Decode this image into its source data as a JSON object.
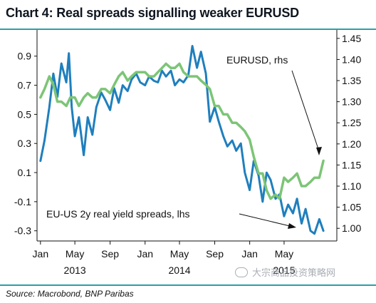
{
  "title": "Chart 4: Real spreads signalling weaker EURUSD",
  "source": "Source: Macrobond, BNP Paribas",
  "watermark": "大宗商品投资策略网",
  "colors": {
    "spread_series": "#1f7fbd",
    "eurusd_series": "#7cc576",
    "rule": "#2aa0a8",
    "text": "#111111"
  },
  "chart_data": {
    "type": "line",
    "xlim": [
      "2012-12-20",
      "2015-11-01"
    ],
    "ylim_left": [
      -0.37,
      1.08
    ],
    "ylim_right": [
      0.97,
      1.47
    ],
    "left_ticks": [
      0.9,
      0.7,
      0.5,
      0.3,
      0.1,
      -0.1,
      -0.3
    ],
    "left_tick_labels": [
      "0.9",
      "0.7",
      "0.5",
      "0.3",
      "0.1",
      "-0.1",
      "-0.3"
    ],
    "right_ticks": [
      1.45,
      1.4,
      1.35,
      1.3,
      1.25,
      1.2,
      1.15,
      1.1,
      1.05,
      1.0
    ],
    "right_tick_labels": [
      "1.45",
      "1.40",
      "1.35",
      "1.30",
      "1.25",
      "1.20",
      "1.15",
      "1.10",
      "1.05",
      "1.00"
    ],
    "x_ticks": [
      {
        "date": "2013-01-01",
        "label": "Jan"
      },
      {
        "date": "2013-05-01",
        "label": "May"
      },
      {
        "date": "2013-09-01",
        "label": "Sep"
      },
      {
        "date": "2014-01-01",
        "label": "Jan"
      },
      {
        "date": "2014-05-01",
        "label": "May"
      },
      {
        "date": "2014-09-01",
        "label": "Sep"
      },
      {
        "date": "2015-01-01",
        "label": "Jan"
      },
      {
        "date": "2015-05-01",
        "label": "May"
      }
    ],
    "year_labels": [
      {
        "date": "2013-05-01",
        "label": "2013"
      },
      {
        "date": "2014-05-01",
        "label": "2014"
      },
      {
        "date": "2015-05-01",
        "label": "2015"
      }
    ],
    "grid": false,
    "series": [
      {
        "name": "EU-US 2y real yield spreads, lhs",
        "axis": "left",
        "x": [
          "2013-01-01",
          "2013-01-15",
          "2013-02-01",
          "2013-02-15",
          "2013-03-01",
          "2013-03-15",
          "2013-04-01",
          "2013-04-10",
          "2013-04-20",
          "2013-05-01",
          "2013-05-15",
          "2013-06-01",
          "2013-06-15",
          "2013-07-01",
          "2013-07-15",
          "2013-08-01",
          "2013-08-15",
          "2013-09-01",
          "2013-09-15",
          "2013-10-01",
          "2013-10-15",
          "2013-11-01",
          "2013-11-15",
          "2013-12-01",
          "2013-12-15",
          "2014-01-01",
          "2014-01-15",
          "2014-02-01",
          "2014-02-15",
          "2014-03-01",
          "2014-03-15",
          "2014-04-01",
          "2014-04-15",
          "2014-05-01",
          "2014-05-15",
          "2014-06-01",
          "2014-06-15",
          "2014-07-01",
          "2014-07-15",
          "2014-08-01",
          "2014-08-15",
          "2014-09-01",
          "2014-09-15",
          "2014-10-01",
          "2014-10-15",
          "2014-11-01",
          "2014-11-15",
          "2014-12-01",
          "2014-12-15",
          "2015-01-01",
          "2015-01-15",
          "2015-02-01",
          "2015-02-15",
          "2015-03-01",
          "2015-03-15",
          "2015-04-01",
          "2015-04-15",
          "2015-05-01",
          "2015-05-15",
          "2015-06-01",
          "2015-06-15",
          "2015-07-01",
          "2015-07-15",
          "2015-08-01",
          "2015-08-15",
          "2015-09-01",
          "2015-09-15"
        ],
        "values": [
          0.18,
          0.32,
          0.55,
          0.78,
          0.62,
          0.85,
          0.72,
          0.92,
          0.55,
          0.35,
          0.48,
          0.22,
          0.48,
          0.36,
          0.55,
          0.65,
          0.6,
          0.53,
          0.68,
          0.58,
          0.7,
          0.66,
          0.74,
          0.78,
          0.72,
          0.7,
          0.76,
          0.73,
          0.72,
          0.8,
          0.76,
          0.8,
          0.7,
          0.74,
          0.72,
          0.77,
          0.97,
          0.82,
          0.93,
          0.78,
          0.45,
          0.55,
          0.45,
          0.35,
          0.28,
          0.32,
          0.25,
          0.3,
          0.1,
          -0.02,
          0.18,
          0.08,
          -0.1,
          0.1,
          0.05,
          -0.08,
          -0.05,
          -0.2,
          -0.12,
          -0.18,
          -0.08,
          -0.25,
          -0.15,
          -0.3,
          -0.32,
          -0.22,
          -0.3
        ]
      },
      {
        "name": "EURUSD, rhs",
        "axis": "right",
        "x": [
          "2013-01-01",
          "2013-01-15",
          "2013-02-01",
          "2013-02-15",
          "2013-03-01",
          "2013-03-15",
          "2013-04-01",
          "2013-04-15",
          "2013-05-01",
          "2013-05-15",
          "2013-06-01",
          "2013-06-15",
          "2013-07-01",
          "2013-07-15",
          "2013-08-01",
          "2013-08-15",
          "2013-09-01",
          "2013-09-15",
          "2013-10-01",
          "2013-10-15",
          "2013-11-01",
          "2013-11-15",
          "2013-12-01",
          "2013-12-15",
          "2014-01-01",
          "2014-01-15",
          "2014-02-01",
          "2014-02-15",
          "2014-03-01",
          "2014-03-15",
          "2014-04-01",
          "2014-04-15",
          "2014-05-01",
          "2014-05-15",
          "2014-06-01",
          "2014-06-15",
          "2014-07-01",
          "2014-07-15",
          "2014-08-01",
          "2014-08-15",
          "2014-09-01",
          "2014-09-15",
          "2014-10-01",
          "2014-10-15",
          "2014-11-01",
          "2014-11-15",
          "2014-12-01",
          "2014-12-15",
          "2015-01-01",
          "2015-01-15",
          "2015-02-01",
          "2015-02-15",
          "2015-03-01",
          "2015-03-15",
          "2015-04-01",
          "2015-04-15",
          "2015-05-01",
          "2015-05-15",
          "2015-06-01",
          "2015-06-15",
          "2015-07-01",
          "2015-07-15",
          "2015-08-01",
          "2015-08-15",
          "2015-09-01",
          "2015-09-15"
        ],
        "values": [
          1.31,
          1.33,
          1.36,
          1.34,
          1.3,
          1.3,
          1.29,
          1.31,
          1.31,
          1.29,
          1.31,
          1.32,
          1.31,
          1.31,
          1.33,
          1.33,
          1.32,
          1.34,
          1.36,
          1.37,
          1.35,
          1.36,
          1.37,
          1.37,
          1.37,
          1.36,
          1.36,
          1.37,
          1.38,
          1.39,
          1.38,
          1.38,
          1.39,
          1.37,
          1.36,
          1.36,
          1.36,
          1.35,
          1.34,
          1.33,
          1.29,
          1.29,
          1.27,
          1.27,
          1.25,
          1.25,
          1.24,
          1.23,
          1.21,
          1.17,
          1.13,
          1.13,
          1.09,
          1.07,
          1.08,
          1.07,
          1.12,
          1.11,
          1.12,
          1.13,
          1.1,
          1.1,
          1.11,
          1.12,
          1.12,
          1.16
        ]
      }
    ],
    "annotations": [
      {
        "text": "EURUSD, rhs",
        "series": 1
      },
      {
        "text": "EU-US 2y real yield spreads, lhs",
        "series": 0
      }
    ]
  }
}
